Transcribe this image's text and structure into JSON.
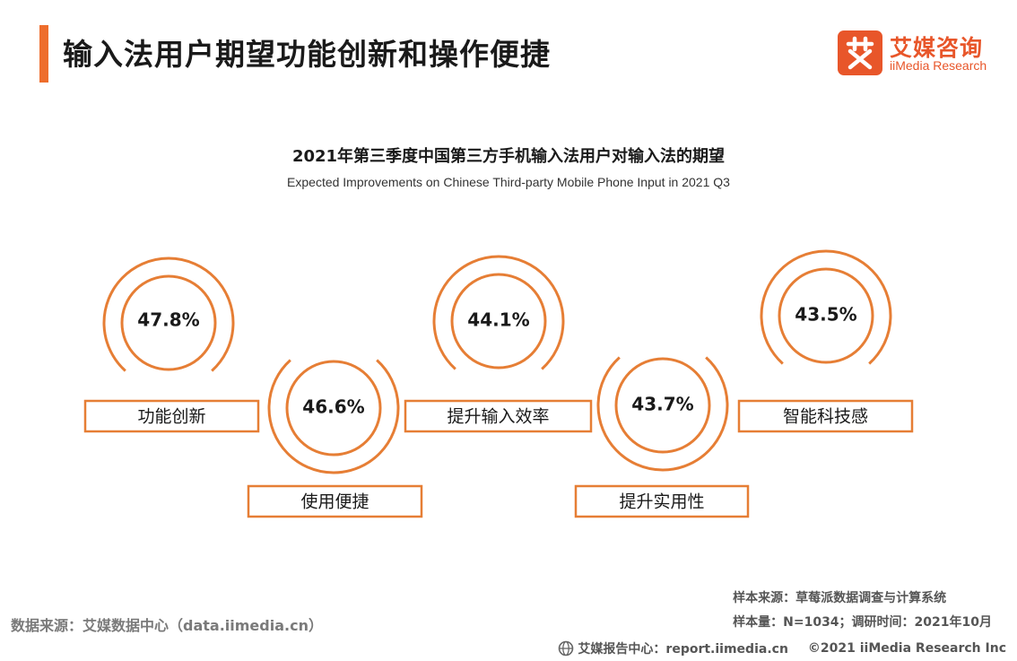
{
  "page": {
    "title": "输入法用户期望功能创新和操作便捷",
    "accent_color": "#ee6d2c"
  },
  "logo": {
    "mark": "艾",
    "name": "艾媒咨询",
    "english": "iiMedia Research",
    "color": "#e8562a"
  },
  "chart_data": {
    "type": "ring-indicators",
    "title": "2021年第三季度中国第三方手机输入法用户对输入法的期望",
    "subtitle": "Expected Improvements on Chinese Third-party Mobile Phone Input in 2021 Q3",
    "unit": "%",
    "categories": [
      "功能创新",
      "使用便捷",
      "提升输入效率",
      "提升实用性",
      "智能科技感"
    ],
    "values": [
      47.8,
      46.6,
      44.1,
      43.7,
      43.5
    ],
    "value_labels": [
      "47.8%",
      "46.6%",
      "44.1%",
      "43.7%",
      "43.5%"
    ],
    "color": "#e67e35"
  },
  "sources": {
    "left": "数据来源：艾媒数据中心（data.iimedia.cn）",
    "sample_source": "样本来源：草莓派数据调查与计算系统",
    "sample_info": "样本量：N=1034；调研时间：2021年10月"
  },
  "footer": {
    "report_center": "艾媒报告中心：report.iimedia.cn",
    "copyright": "©2021  iiMedia Research  Inc",
    "icon": "globe-icon"
  }
}
